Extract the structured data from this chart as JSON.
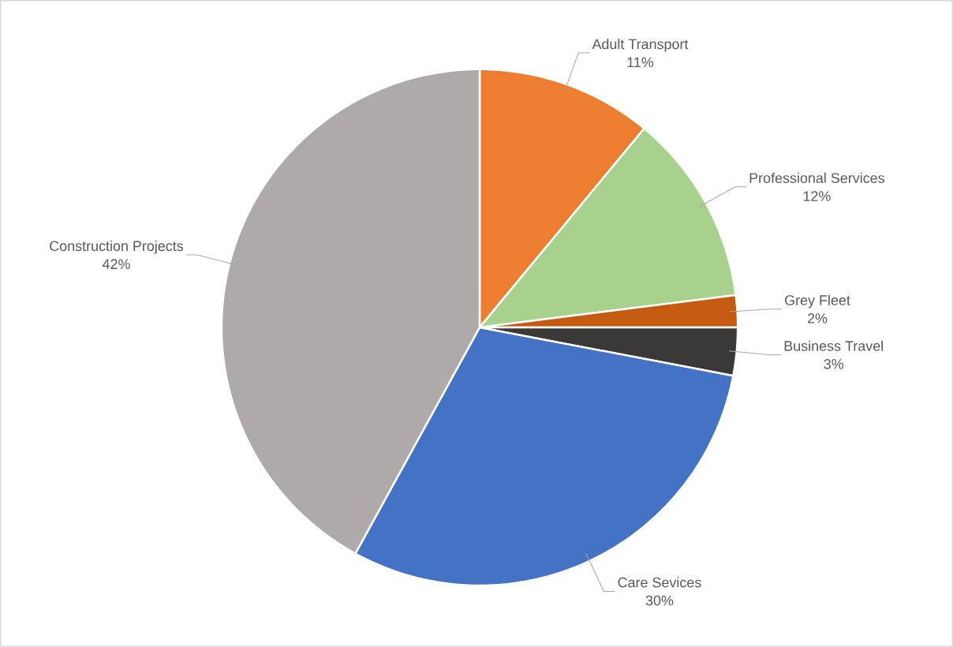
{
  "chart_data": {
    "type": "pie",
    "categories": [
      "Adult Transport",
      "Professional Services",
      "Grey Fleet",
      "Business Travel",
      "Care Sevices",
      "Construction Projects"
    ],
    "values": [
      11,
      12,
      2,
      3,
      30,
      42
    ],
    "colors": [
      "#ed7d31",
      "#a9d18e",
      "#c55a11",
      "#3b3838",
      "#4472c4",
      "#aeaaaa"
    ],
    "value_labels": [
      "11%",
      "12%",
      "2%",
      "3%",
      "30%",
      "42%"
    ]
  }
}
